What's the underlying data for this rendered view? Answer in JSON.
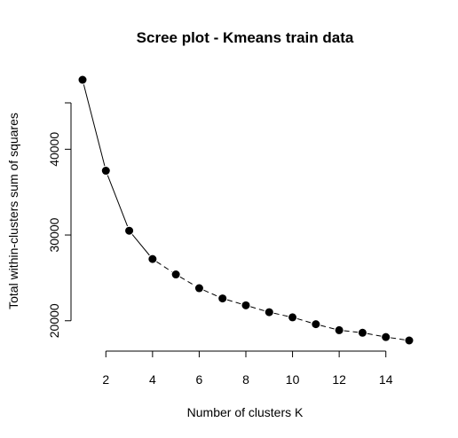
{
  "chart_data": {
    "type": "line",
    "title": "Scree plot - Kmeans train data",
    "xlabel": "Number of clusters K",
    "ylabel": "Total within-clusters sum of squares",
    "x": [
      1,
      2,
      3,
      4,
      5,
      6,
      7,
      8,
      9,
      10,
      11,
      12,
      13,
      14,
      15
    ],
    "series": [
      {
        "values": [
          48100,
          37500,
          30500,
          27200,
          25400,
          23800,
          22600,
          21800,
          21000,
          20400,
          19600,
          18900,
          18600,
          18100,
          17700
        ]
      }
    ],
    "xlim": [
      1,
      15
    ],
    "ylim": [
      17700,
      48100
    ],
    "x_ticks": [
      2,
      4,
      6,
      8,
      10,
      12,
      14
    ],
    "y_ticks": [
      20000,
      30000,
      40000
    ],
    "markers": "filled-circle",
    "line_style": "solid-to-dashed",
    "grid": false,
    "colors": {
      "line": "#000000",
      "points": "#000000",
      "background": "#ffffff"
    }
  }
}
